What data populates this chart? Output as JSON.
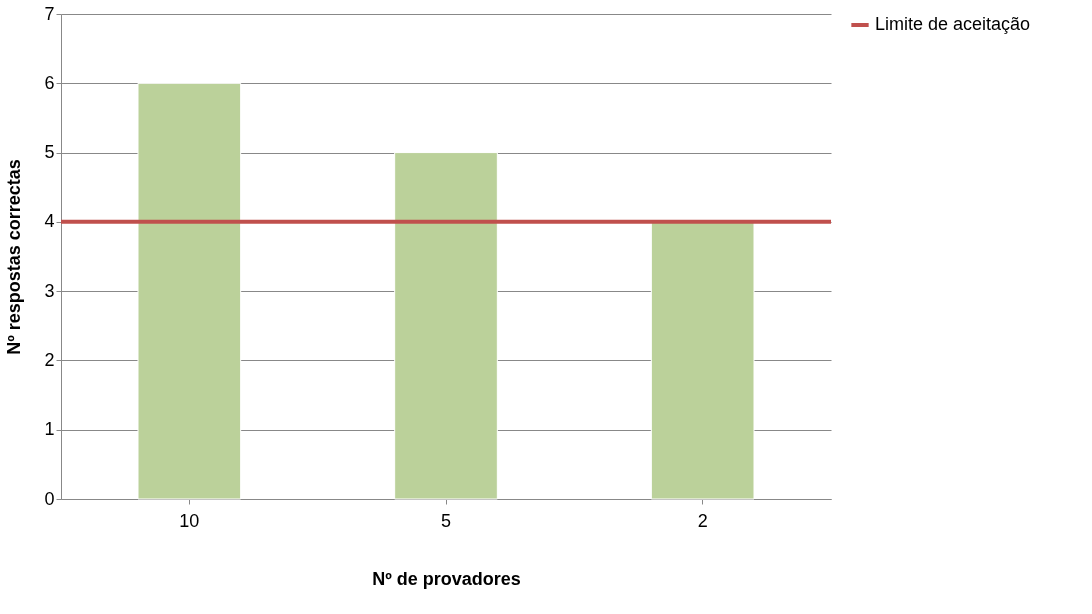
{
  "chart_data": {
    "type": "bar",
    "xlabel": "Nº de provadores",
    "ylabel": "Nº respostas correctas",
    "categories": [
      "10",
      "5",
      "2"
    ],
    "values": [
      6,
      5,
      4
    ],
    "color": "#bbd19a",
    "ylim": [
      0,
      7
    ],
    "yticks": [
      0,
      1,
      2,
      3,
      4,
      5,
      6,
      7
    ],
    "grid": "y",
    "legend": "right",
    "ref_lines": [
      {
        "axis": "y",
        "value": 4,
        "label": "Limite de aceitação",
        "color": "#c0504d"
      }
    ]
  }
}
